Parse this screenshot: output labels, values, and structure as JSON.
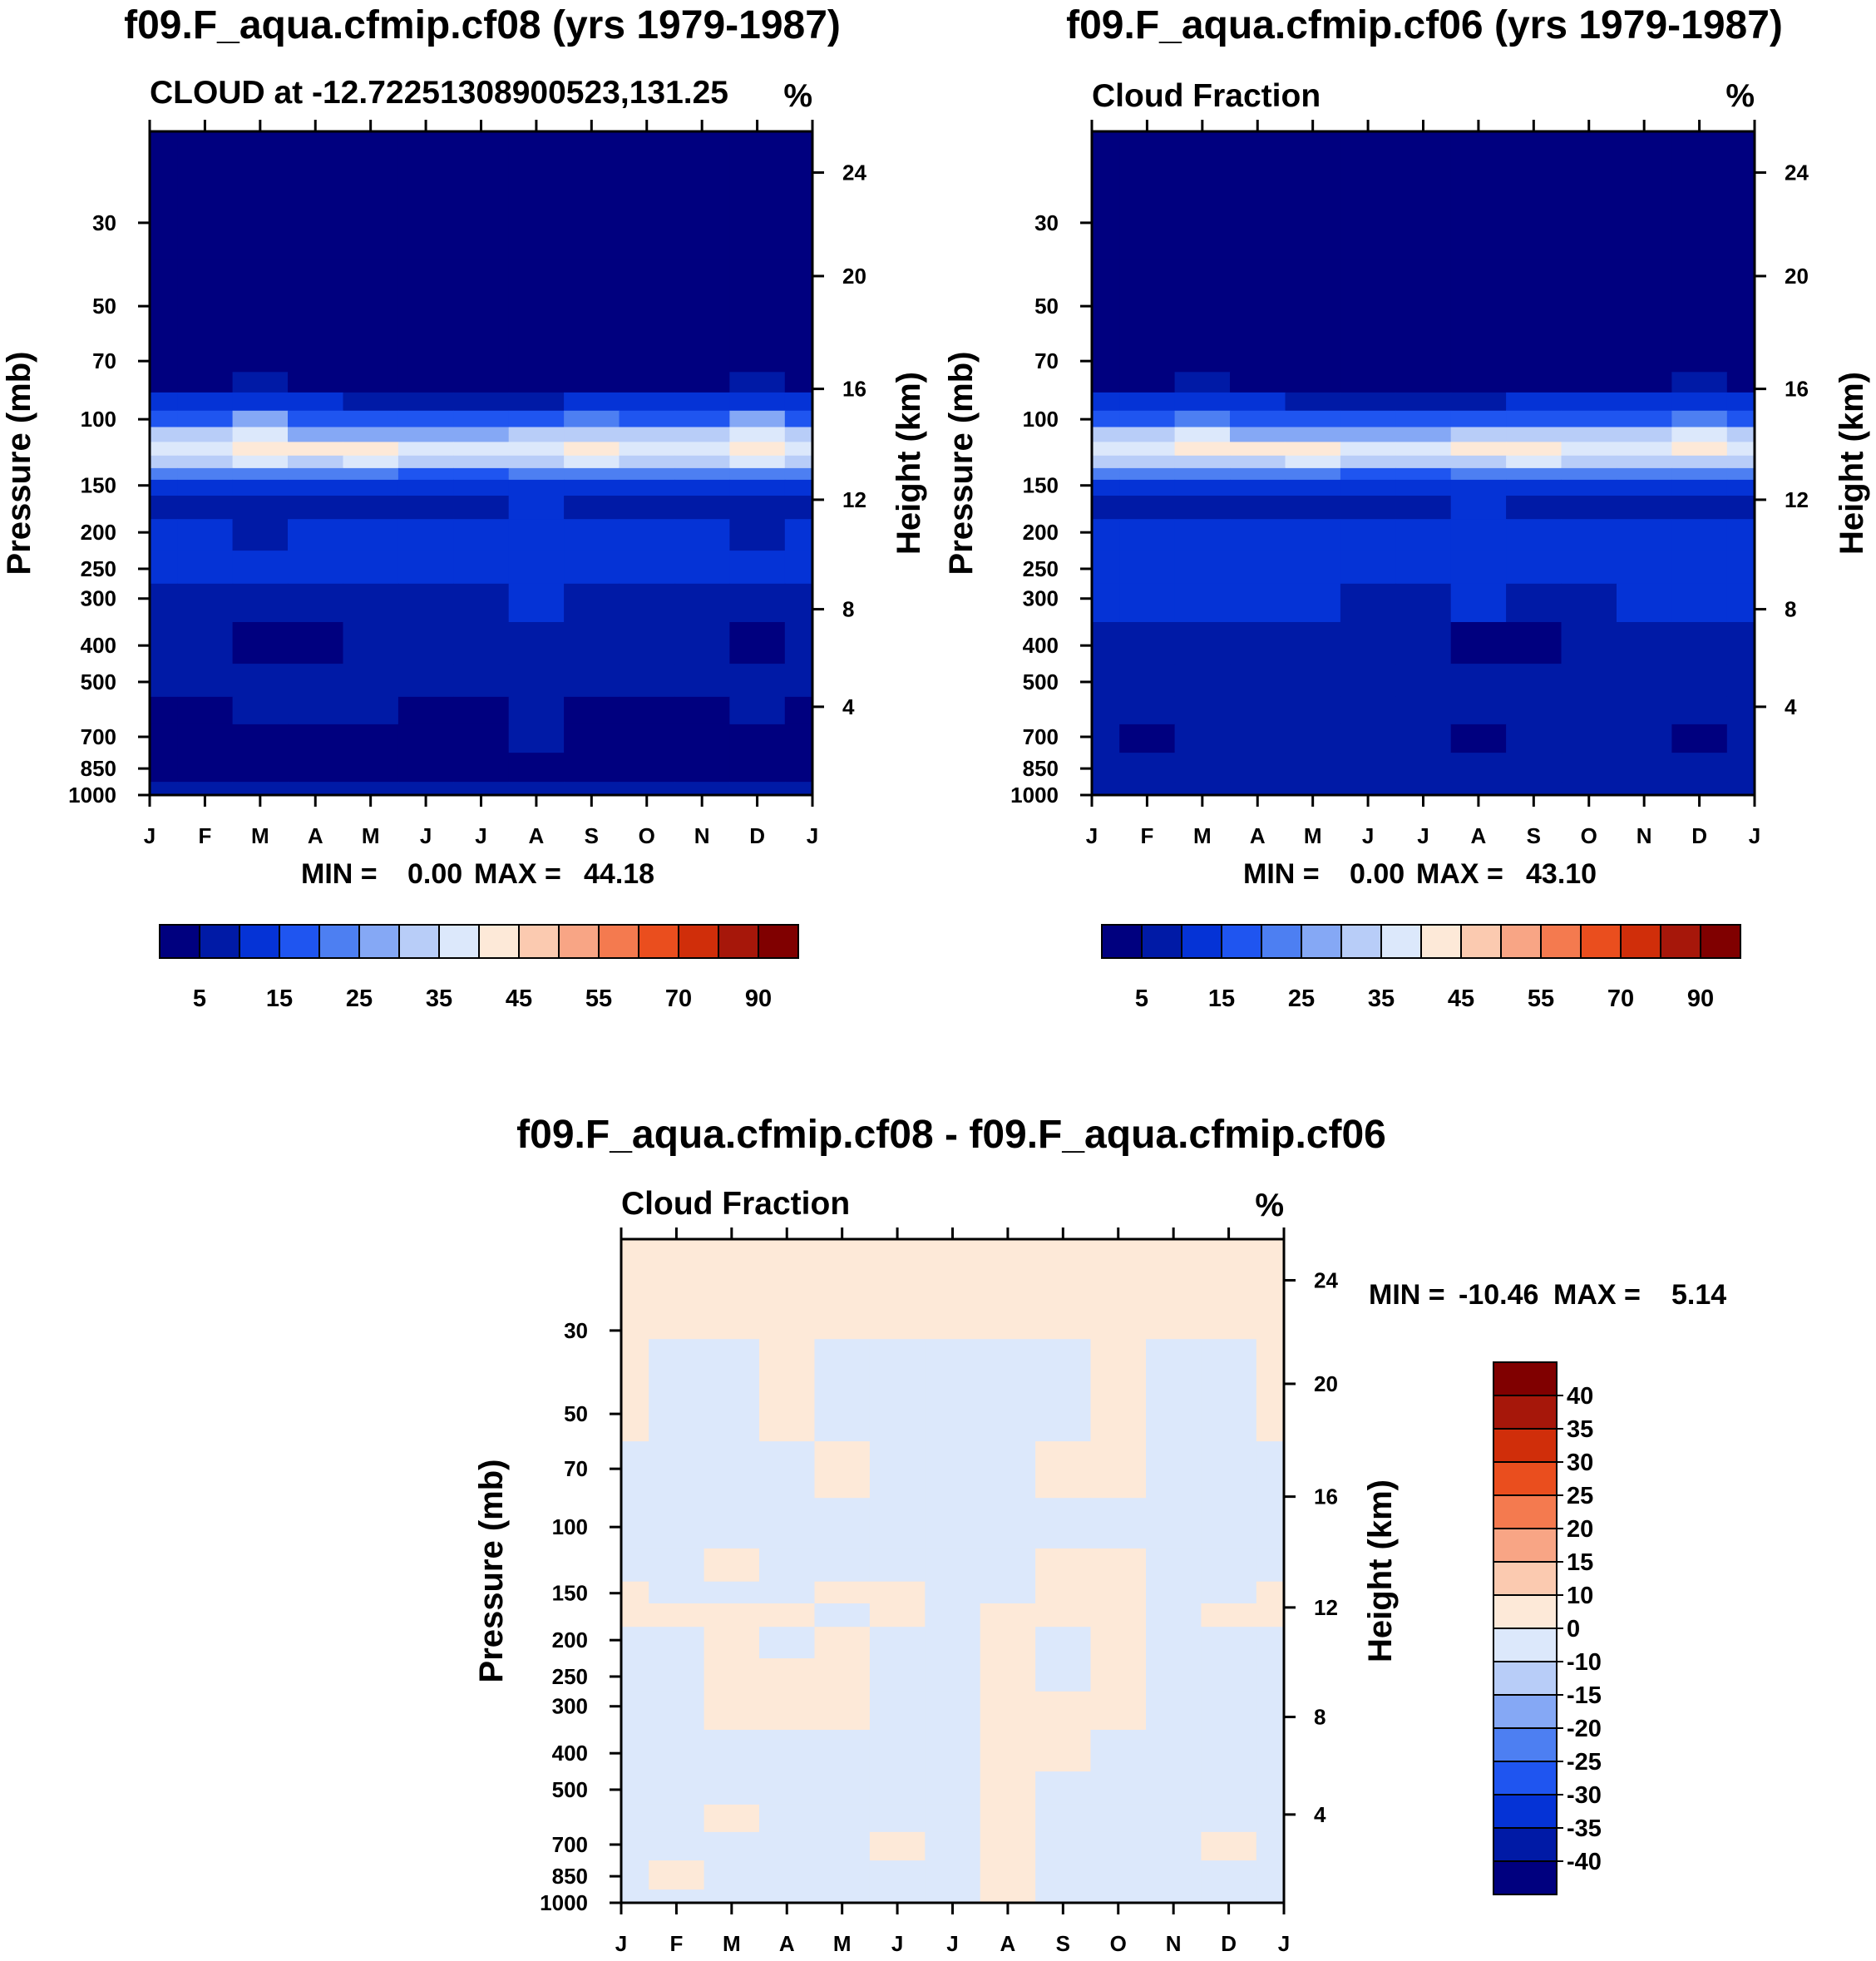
{
  "palette": {
    "positive": [
      "#00007f",
      "#001aa6",
      "#0533d6",
      "#1f55f0",
      "#4d7ff2",
      "#85a8f5",
      "#b8cdf8",
      "#dce8fb",
      "#fde9d8",
      "#fbcab0",
      "#f8a585",
      "#f47a4f",
      "#ea4e1e",
      "#d02e0a",
      "#a6170a",
      "#800000"
    ],
    "diverging": [
      "#00007f",
      "#001aa6",
      "#0533d6",
      "#1f55f0",
      "#4d7ff2",
      "#85a8f5",
      "#b8cdf8",
      "#dce8fb",
      "#fde9d8",
      "#fbcab0",
      "#f8a585",
      "#f47a4f",
      "#ea4e1e",
      "#d02e0a",
      "#a6170a",
      "#800000"
    ]
  },
  "chart_data": [
    {
      "type": "heatmap",
      "title": "f09.F_aqua.cfmip.cf08 (yrs 1979-1987)",
      "subtitle_left": "CLOUD at -12.72251308900523,131.25",
      "subtitle_right": "%",
      "ylabel_left": "Pressure (mb)",
      "ylabel_right": "Height (km)",
      "x_ticks": [
        "J",
        "F",
        "M",
        "A",
        "M",
        "J",
        "J",
        "A",
        "S",
        "O",
        "N",
        "D",
        "J"
      ],
      "pressure_ticks": [
        "30",
        "50",
        "70",
        "100",
        "150",
        "200",
        "250",
        "300",
        "400",
        "500",
        "700",
        "850",
        "1000"
      ],
      "height_ticks": [
        "24",
        "20",
        "16",
        "12",
        "8",
        "4"
      ],
      "min_label": "MIN =",
      "min_value": "0.00",
      "max_label": "MAX =",
      "max_value": "44.18",
      "colorbar_labels": [
        "5",
        "15",
        "25",
        "35",
        "45",
        "55",
        "70",
        "90"
      ],
      "pressure_levels": [
        20,
        70,
        80,
        90,
        100,
        110,
        120,
        130,
        140,
        150,
        170,
        200,
        250,
        300,
        400,
        500,
        600,
        700,
        850,
        1000
      ],
      "values_by_level": [
        [
          0,
          0,
          0,
          0,
          0,
          0,
          0,
          0,
          0,
          0,
          0,
          0,
          0
        ],
        [
          1,
          1,
          1,
          1,
          1,
          1,
          1,
          1,
          1,
          1,
          1,
          1,
          1
        ],
        [
          4,
          4,
          7,
          4,
          3,
          3,
          3,
          3,
          4,
          4,
          4,
          7,
          4
        ],
        [
          10,
          10,
          14,
          10,
          9,
          9,
          9,
          9,
          10,
          10,
          10,
          14,
          10
        ],
        [
          18,
          18,
          25,
          18,
          16,
          16,
          17,
          18,
          20,
          18,
          18,
          25,
          18
        ],
        [
          30,
          30,
          36,
          28,
          28,
          27,
          29,
          30,
          33,
          30,
          30,
          36,
          30
        ],
        [
          38,
          38,
          41,
          40,
          42,
          37,
          36,
          38,
          44,
          38,
          37,
          41,
          38
        ],
        [
          33,
          33,
          35,
          33,
          36,
          32,
          31,
          32,
          36,
          33,
          32,
          35,
          33
        ],
        [
          20,
          20,
          22,
          20,
          20,
          19,
          19,
          20,
          22,
          20,
          20,
          22,
          20
        ],
        [
          11,
          11,
          12,
          11,
          11,
          11,
          11,
          11,
          12,
          11,
          11,
          12,
          11
        ],
        [
          9,
          9,
          9,
          9,
          9,
          9,
          9,
          10,
          9,
          9,
          9,
          9,
          9
        ],
        [
          10,
          10,
          9,
          10,
          10,
          10,
          11,
          12,
          10,
          10,
          10,
          9,
          10
        ],
        [
          11,
          11,
          11,
          11,
          11,
          11,
          11,
          14,
          11,
          11,
          11,
          11,
          11
        ],
        [
          9,
          9,
          8,
          9,
          9,
          9,
          9,
          11,
          9,
          9,
          9,
          8,
          9
        ],
        [
          5,
          5,
          4,
          4,
          5,
          5,
          5,
          8,
          6,
          5,
          5,
          4,
          5
        ],
        [
          7,
          6,
          6,
          6,
          6,
          6,
          5,
          8,
          6,
          5,
          5,
          6,
          7
        ],
        [
          4,
          4,
          5,
          5,
          5,
          4,
          4,
          7,
          4,
          4,
          4,
          5,
          4
        ],
        [
          3,
          3,
          4,
          4,
          4,
          4,
          4,
          6,
          4,
          4,
          3,
          4,
          3
        ],
        [
          3,
          3,
          3,
          3,
          3,
          3,
          3,
          3,
          3,
          3,
          3,
          3,
          3
        ],
        [
          9,
          9,
          9,
          9,
          9,
          9,
          9,
          9,
          9,
          9,
          9,
          9,
          9
        ]
      ]
    },
    {
      "type": "heatmap",
      "title": "f09.F_aqua.cfmip.cf06 (yrs 1979-1987)",
      "subtitle_left": "Cloud Fraction",
      "subtitle_right": "%",
      "ylabel_left": "Pressure (mb)",
      "ylabel_right": "Height (km)",
      "x_ticks": [
        "J",
        "F",
        "M",
        "A",
        "M",
        "J",
        "J",
        "A",
        "S",
        "O",
        "N",
        "D",
        "J"
      ],
      "pressure_ticks": [
        "30",
        "50",
        "70",
        "100",
        "150",
        "200",
        "250",
        "300",
        "400",
        "500",
        "700",
        "850",
        "1000"
      ],
      "height_ticks": [
        "24",
        "20",
        "16",
        "12",
        "8",
        "4"
      ],
      "min_label": "MIN =",
      "min_value": "0.00",
      "max_label": "MAX =",
      "max_value": "43.10",
      "colorbar_labels": [
        "5",
        "15",
        "25",
        "35",
        "45",
        "55",
        "70",
        "90"
      ],
      "pressure_levels": [
        20,
        70,
        80,
        90,
        100,
        110,
        120,
        130,
        140,
        150,
        170,
        200,
        250,
        300,
        400,
        500,
        600,
        700,
        850,
        1000
      ],
      "values_by_level": [
        [
          0,
          0,
          0,
          0,
          0,
          0,
          0,
          0,
          0,
          0,
          0,
          0,
          0
        ],
        [
          1,
          1,
          1,
          1,
          1,
          1,
          1,
          1,
          1,
          1,
          1,
          1,
          1
        ],
        [
          4,
          4,
          6,
          4,
          3,
          3,
          3,
          3,
          4,
          4,
          4,
          7,
          4
        ],
        [
          10,
          10,
          13,
          10,
          9,
          9,
          9,
          9,
          10,
          10,
          10,
          14,
          10
        ],
        [
          18,
          18,
          23,
          18,
          16,
          16,
          17,
          18,
          19,
          18,
          18,
          24,
          18
        ],
        [
          30,
          30,
          35,
          28,
          28,
          27,
          29,
          31,
          33,
          30,
          30,
          36,
          30
        ],
        [
          38,
          38,
          40,
          40,
          41,
          37,
          36,
          40,
          43,
          38,
          38,
          40,
          38
        ],
        [
          33,
          33,
          34,
          33,
          35,
          32,
          31,
          33,
          35,
          33,
          33,
          34,
          33
        ],
        [
          20,
          20,
          21,
          20,
          20,
          19,
          19,
          20,
          21,
          20,
          20,
          21,
          20
        ],
        [
          11,
          11,
          12,
          11,
          11,
          11,
          11,
          11,
          12,
          11,
          11,
          12,
          11
        ],
        [
          9,
          9,
          9,
          9,
          9,
          9,
          9,
          10,
          9,
          9,
          9,
          9,
          9
        ],
        [
          12,
          12,
          11,
          10,
          10,
          10,
          10,
          11,
          10,
          10,
          12,
          11,
          12
        ],
        [
          13,
          13,
          11,
          11,
          11,
          11,
          11,
          12,
          11,
          11,
          14,
          13,
          13
        ],
        [
          10,
          10,
          10,
          10,
          10,
          9,
          9,
          10,
          9,
          9,
          10,
          10,
          10
        ],
        [
          8,
          8,
          8,
          6,
          7,
          5,
          7,
          4,
          4,
          7,
          8,
          8,
          8
        ],
        [
          9,
          8,
          8,
          8,
          8,
          6,
          8,
          6,
          6,
          8,
          8,
          8,
          9
        ],
        [
          7,
          7,
          8,
          8,
          8,
          6,
          7,
          6,
          6,
          8,
          7,
          6,
          7
        ],
        [
          6,
          4,
          7,
          7,
          6,
          5,
          6,
          4,
          5,
          7,
          6,
          4,
          6
        ],
        [
          5,
          5,
          5,
          5,
          5,
          5,
          5,
          5,
          5,
          5,
          5,
          5,
          5
        ],
        [
          9,
          9,
          9,
          9,
          9,
          9,
          9,
          9,
          9,
          9,
          9,
          9,
          9
        ]
      ]
    },
    {
      "type": "heatmap",
      "title": "f09.F_aqua.cfmip.cf08 - f09.F_aqua.cfmip.cf06",
      "subtitle_left": "Cloud Fraction",
      "subtitle_right": "%",
      "ylabel_left": "Pressure (mb)",
      "ylabel_right": "Height (km)",
      "x_ticks": [
        "J",
        "F",
        "M",
        "A",
        "M",
        "J",
        "J",
        "A",
        "S",
        "O",
        "N",
        "D",
        "J"
      ],
      "pressure_ticks": [
        "30",
        "50",
        "70",
        "100",
        "150",
        "200",
        "250",
        "300",
        "400",
        "500",
        "700",
        "850",
        "1000"
      ],
      "height_ticks": [
        "24",
        "20",
        "16",
        "12",
        "8",
        "4"
      ],
      "min_label": "MIN =",
      "min_value": "-10.46",
      "max_label": "MAX =",
      "max_value": "5.14",
      "colorbar_labels": [
        "40",
        "35",
        "30",
        "25",
        "20",
        "15",
        "10",
        "0",
        "-10",
        "-15",
        "-20",
        "-25",
        "-30",
        "-35",
        "-40"
      ],
      "pressure_levels": [
        20,
        50,
        70,
        100,
        130,
        150,
        170,
        200,
        250,
        300,
        400,
        500,
        600,
        700,
        850,
        1000
      ],
      "values_by_level": [
        [
          1,
          1,
          1,
          1,
          1,
          1,
          1,
          1,
          1,
          1,
          1,
          1,
          1
        ],
        [
          1,
          -1,
          -1,
          1,
          -1,
          -1,
          -1,
          -1,
          -1,
          1,
          -1,
          -1,
          1
        ],
        [
          -1,
          -1,
          -1,
          -1,
          1,
          -1,
          -1,
          -1,
          1,
          1,
          -1,
          -1,
          -1
        ],
        [
          -1,
          -1,
          -1,
          -1,
          -1,
          -1,
          -1,
          -1,
          -1,
          -1,
          -1,
          -1,
          -1
        ],
        [
          -1,
          -1,
          1,
          -1,
          -1,
          -1,
          -1,
          -1,
          1,
          1,
          -1,
          -1,
          -1
        ],
        [
          1,
          -1,
          -1,
          -1,
          1,
          1,
          -1,
          -1,
          1,
          1,
          -1,
          -1,
          1
        ],
        [
          1,
          1,
          1,
          1,
          -1,
          1,
          -1,
          1,
          1,
          1,
          -1,
          1,
          1
        ],
        [
          -1,
          -1,
          1,
          -1,
          1,
          -1,
          -1,
          1,
          -1,
          1,
          -1,
          -1,
          -1
        ],
        [
          -1,
          -1,
          1,
          1,
          1,
          -1,
          -1,
          1,
          -1,
          1,
          -1,
          -1,
          -1
        ],
        [
          -1,
          -1,
          1,
          1,
          1,
          -1,
          -1,
          1,
          1,
          1,
          -1,
          -1,
          -1
        ],
        [
          -1,
          -1,
          -1,
          -1,
          -1,
          -1,
          -1,
          1,
          1,
          -1,
          -1,
          -1,
          -1
        ],
        [
          -1,
          -1,
          -1,
          -1,
          -1,
          -1,
          -1,
          1,
          -1,
          -1,
          -1,
          -1,
          -1
        ],
        [
          -1,
          -1,
          1,
          -1,
          -1,
          -1,
          -1,
          1,
          -1,
          -1,
          -1,
          -1,
          -1
        ],
        [
          -1,
          -1,
          -1,
          -1,
          -1,
          1,
          -1,
          1,
          -1,
          -1,
          -1,
          1,
          -1
        ],
        [
          -1,
          1,
          -1,
          -1,
          -1,
          -1,
          -1,
          1,
          -1,
          -1,
          -1,
          -1,
          -1
        ],
        [
          -1,
          -1,
          -1,
          -1,
          -1,
          -1,
          -1,
          1,
          -1,
          -1,
          -1,
          -1,
          -1
        ]
      ]
    }
  ]
}
